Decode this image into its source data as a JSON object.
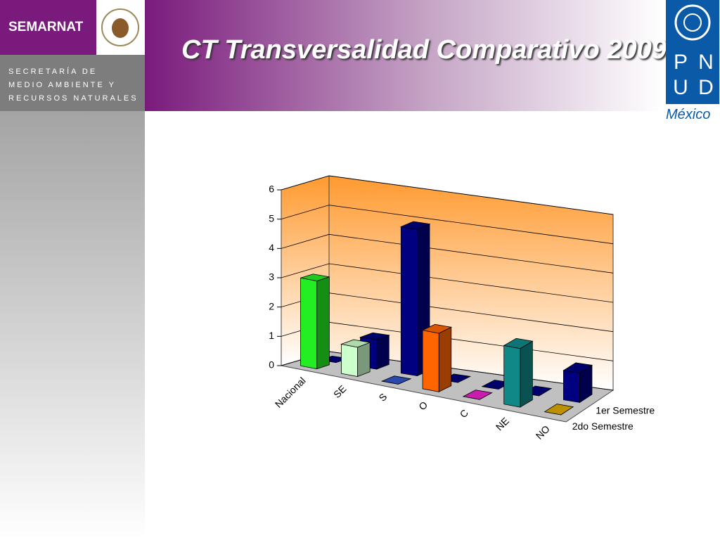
{
  "header": {
    "org": "SEMARNAT",
    "org_lines": [
      "SECRETARÍA DE",
      "MEDIO AMBIENTE Y",
      "RECURSOS NATURALES"
    ],
    "title": "CT Transversalidad Comparativo 2009",
    "logo_letters": [
      "P",
      "N",
      "U",
      "D"
    ],
    "logo_caption": "México"
  },
  "chart_data": {
    "type": "bar3d",
    "categories": [
      "Nacional",
      "SE",
      "S",
      "O",
      "C",
      "NE",
      "NO"
    ],
    "series": [
      {
        "name": "1er Semestre",
        "color": "#000080",
        "values": [
          0,
          1,
          5,
          0,
          0,
          0,
          1
        ]
      },
      {
        "name": "2do Semestre",
        "colors": [
          "#22ee22",
          "#ccffcc",
          "#3355cc",
          "#ff6600",
          "#ee22cc",
          "#118888",
          "#ddaa00"
        ],
        "values": [
          3,
          1,
          0,
          2,
          0,
          2,
          0
        ]
      }
    ],
    "ylim": [
      0,
      6
    ],
    "yticks": [
      0,
      1,
      2,
      3,
      4,
      5,
      6
    ],
    "grid": true
  }
}
